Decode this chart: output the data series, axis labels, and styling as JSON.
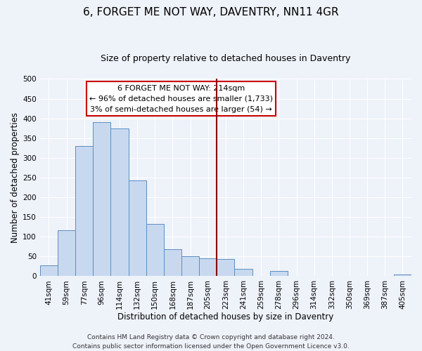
{
  "title": "6, FORGET ME NOT WAY, DAVENTRY, NN11 4GR",
  "subtitle": "Size of property relative to detached houses in Daventry",
  "xlabel": "Distribution of detached houses by size in Daventry",
  "ylabel": "Number of detached properties",
  "bar_labels": [
    "41sqm",
    "59sqm",
    "77sqm",
    "96sqm",
    "114sqm",
    "132sqm",
    "150sqm",
    "168sqm",
    "187sqm",
    "205sqm",
    "223sqm",
    "241sqm",
    "259sqm",
    "278sqm",
    "296sqm",
    "314sqm",
    "332sqm",
    "350sqm",
    "369sqm",
    "387sqm",
    "405sqm"
  ],
  "bar_values": [
    28,
    117,
    330,
    390,
    375,
    242,
    133,
    68,
    50,
    46,
    43,
    18,
    0,
    13,
    0,
    0,
    0,
    0,
    0,
    0,
    5
  ],
  "bar_color": "#c8d9ef",
  "bar_edge_color": "#5b8ec4",
  "highlight_bar_index": 10,
  "highlight_bar_color": "#c8d9ef",
  "vline_color": "#8B0000",
  "annotation_title": "6 FORGET ME NOT WAY: 214sqm",
  "annotation_line1": "← 96% of detached houses are smaller (1,733)",
  "annotation_line2": "3% of semi-detached houses are larger (54) →",
  "ylim": [
    0,
    500
  ],
  "yticks": [
    0,
    50,
    100,
    150,
    200,
    250,
    300,
    350,
    400,
    450,
    500
  ],
  "footer_line1": "Contains HM Land Registry data © Crown copyright and database right 2024.",
  "footer_line2": "Contains public sector information licensed under the Open Government Licence v3.0.",
  "bg_color": "#eef2f9",
  "plot_bg_color": "#eef2f9",
  "title_fontsize": 11,
  "subtitle_fontsize": 9,
  "axis_label_fontsize": 8.5,
  "tick_fontsize": 7.5,
  "annotation_fontsize": 8,
  "footer_fontsize": 6.5
}
